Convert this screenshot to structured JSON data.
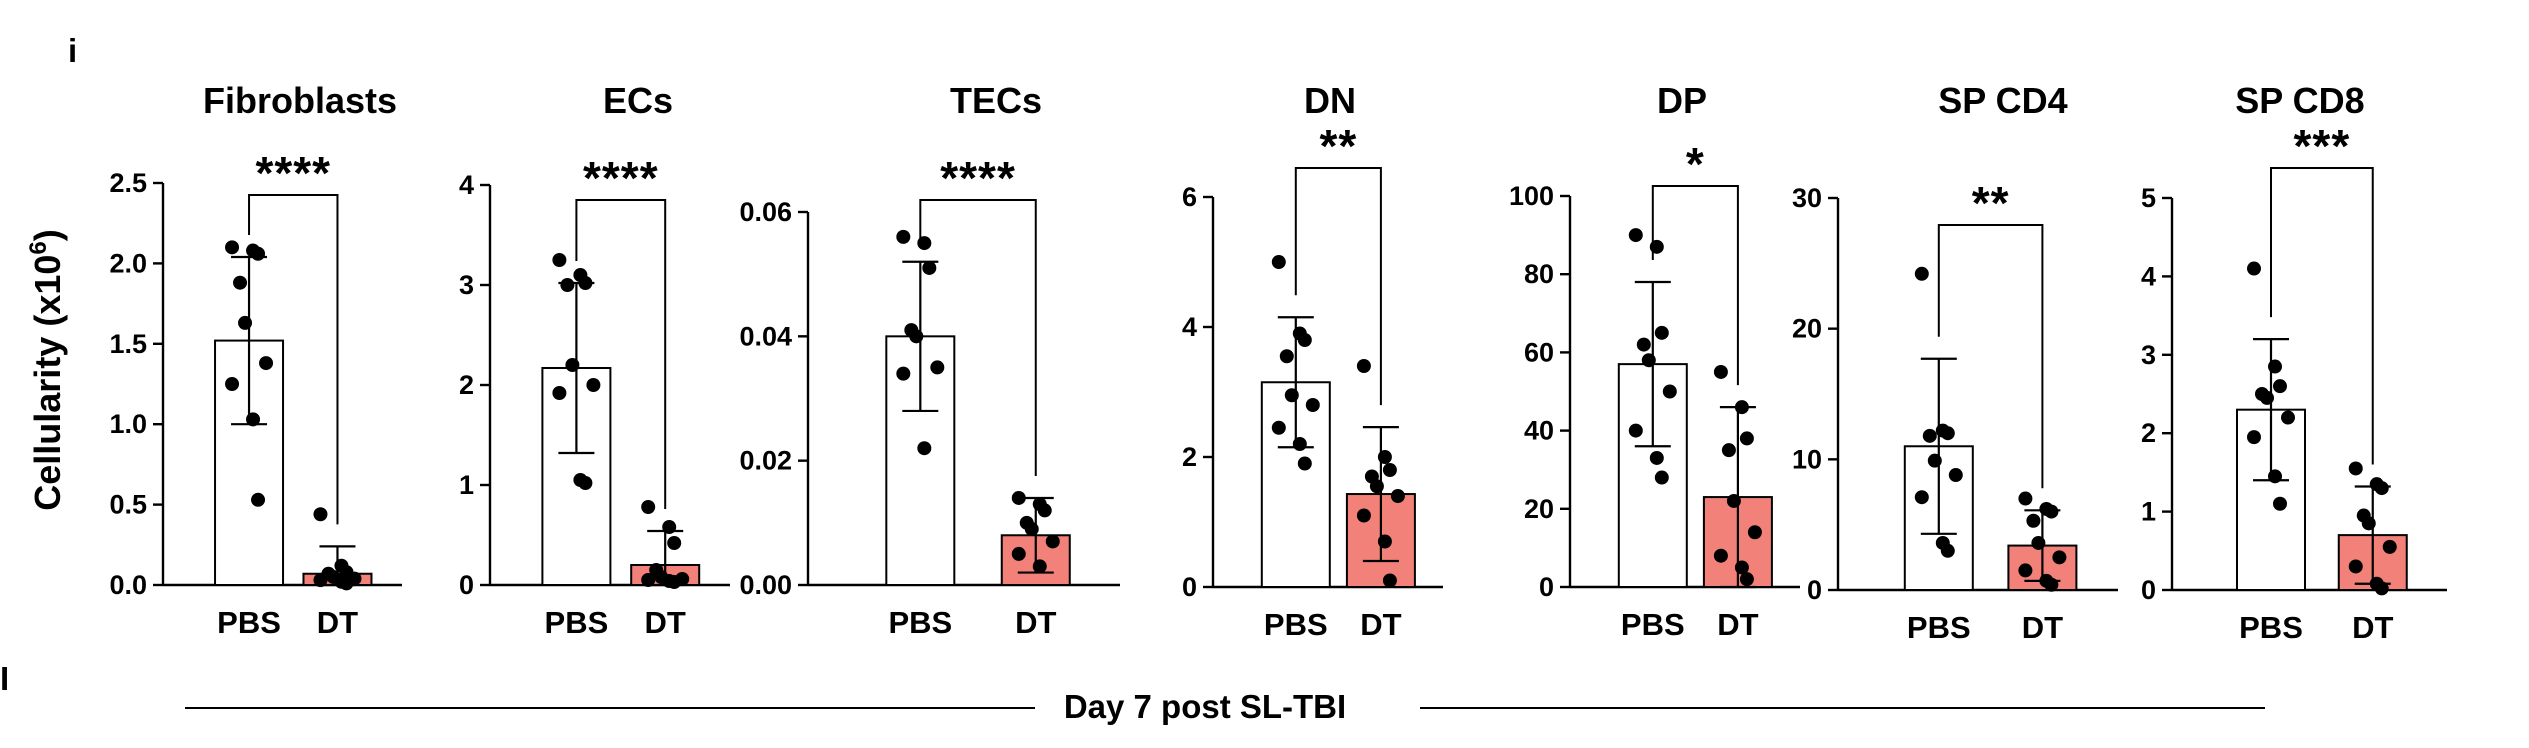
{
  "figure": {
    "shared_ylabel": "Cellularity (x10",
    "shared_ylabel_sup": "6",
    "shared_ylabel_close": ")",
    "footer_label": "Day 7 post SL-TBI",
    "left_edge_fragment": "i",
    "left_edge_fragment_2": "I"
  },
  "colors": {
    "pbs_fill": "#ffffff",
    "dt_fill": "#f28279",
    "stroke": "#000000"
  },
  "chart_data": [
    {
      "type": "bar",
      "title": "Fibroblasts",
      "categories": [
        "PBS",
        "DT"
      ],
      "ylim": [
        0,
        2.5
      ],
      "yticks": [
        "0.0",
        "0.5",
        "1.0",
        "1.5",
        "2.0",
        "2.5"
      ],
      "ytick_values": [
        0,
        0.5,
        1.0,
        1.5,
        2.0,
        2.5
      ],
      "values": [
        1.52,
        0.07
      ],
      "errors": [
        0.52,
        0.17
      ],
      "significance": "****",
      "points": [
        [
          2.1,
          2.08,
          2.06,
          1.88,
          1.63,
          1.38,
          1.25,
          1.03,
          0.53
        ],
        [
          0.44,
          0.12,
          0.08,
          0.07,
          0.05,
          0.04,
          0.03,
          0.02,
          0.01
        ]
      ]
    },
    {
      "type": "bar",
      "title": "ECs",
      "categories": [
        "PBS",
        "DT"
      ],
      "ylim": [
        0,
        4
      ],
      "yticks": [
        "0",
        "1",
        "2",
        "3",
        "4"
      ],
      "ytick_values": [
        0,
        1,
        2,
        3,
        4
      ],
      "values": [
        2.17,
        0.2
      ],
      "errors": [
        0.85,
        0.34
      ],
      "significance": "****",
      "points": [
        [
          3.25,
          3.1,
          3.02,
          3.0,
          2.2,
          2.0,
          1.92,
          1.05,
          1.02
        ],
        [
          0.78,
          0.58,
          0.42,
          0.15,
          0.08,
          0.06,
          0.05,
          0.04,
          0.03
        ]
      ]
    },
    {
      "type": "bar",
      "title": "TECs",
      "categories": [
        "PBS",
        "DT"
      ],
      "ylim": [
        0,
        0.06
      ],
      "yticks": [
        "0.00",
        "0.02",
        "0.04",
        "0.06"
      ],
      "ytick_values": [
        0,
        0.02,
        0.04,
        0.06
      ],
      "values": [
        0.04,
        0.008
      ],
      "errors": [
        0.012,
        0.006
      ],
      "significance": "****",
      "points": [
        [
          0.056,
          0.055,
          0.051,
          0.041,
          0.04,
          0.035,
          0.034,
          0.022
        ],
        [
          0.014,
          0.013,
          0.012,
          0.01,
          0.009,
          0.007,
          0.005,
          0.003
        ]
      ]
    },
    {
      "type": "bar",
      "title": "DN",
      "categories": [
        "PBS",
        "DT"
      ],
      "ylim": [
        0,
        6
      ],
      "yticks": [
        "0",
        "2",
        "4",
        "6"
      ],
      "ytick_values": [
        0,
        2,
        4,
        6
      ],
      "values": [
        3.15,
        1.43
      ],
      "errors": [
        1.0,
        1.03
      ],
      "significance": "**",
      "points": [
        [
          5.0,
          3.9,
          3.8,
          3.55,
          2.95,
          2.8,
          2.45,
          2.2,
          1.9
        ],
        [
          3.4,
          2.0,
          1.8,
          1.7,
          1.55,
          1.4,
          1.1,
          0.7,
          0.1
        ]
      ]
    },
    {
      "type": "bar",
      "title": "DP",
      "categories": [
        "PBS",
        "DT"
      ],
      "ylim": [
        0,
        100
      ],
      "yticks": [
        "0",
        "20",
        "40",
        "60",
        "80",
        "100"
      ],
      "ytick_values": [
        0,
        20,
        40,
        60,
        80,
        100
      ],
      "values": [
        57,
        23
      ],
      "errors": [
        21,
        23
      ],
      "significance": "*",
      "points": [
        [
          90,
          87,
          65,
          62,
          58,
          50,
          40,
          33,
          28
        ],
        [
          55,
          46,
          38,
          35,
          22,
          14,
          8,
          5,
          2
        ]
      ]
    },
    {
      "type": "bar",
      "title": "SP CD4",
      "categories": [
        "PBS",
        "DT"
      ],
      "ylim": [
        0,
        30
      ],
      "yticks": [
        "0",
        "10",
        "20",
        "30"
      ],
      "ytick_values": [
        0,
        10,
        20,
        30
      ],
      "values": [
        11,
        3.4
      ],
      "errors": [
        6.7,
        2.7
      ],
      "significance": "**",
      "points": [
        [
          24.2,
          12.2,
          12.0,
          11.8,
          9.9,
          8.8,
          7.1,
          3.6,
          3.0
        ],
        [
          7.0,
          6.2,
          6.0,
          5.3,
          3.6,
          2.5,
          1.5,
          0.7,
          0.4
        ]
      ]
    },
    {
      "type": "bar",
      "title": "SP CD8",
      "categories": [
        "PBS",
        "DT"
      ],
      "ylim": [
        0,
        5
      ],
      "yticks": [
        "0",
        "1",
        "2",
        "3",
        "4",
        "5"
      ],
      "ytick_values": [
        0,
        1,
        2,
        3,
        4,
        5
      ],
      "values": [
        2.3,
        0.7
      ],
      "errors": [
        0.9,
        0.62
      ],
      "significance": "***",
      "points": [
        [
          4.1,
          2.85,
          2.6,
          2.5,
          2.45,
          2.2,
          1.95,
          1.45,
          1.1
        ],
        [
          1.55,
          1.35,
          1.3,
          0.95,
          0.85,
          0.55,
          0.3,
          0.08,
          0.02
        ]
      ]
    }
  ]
}
